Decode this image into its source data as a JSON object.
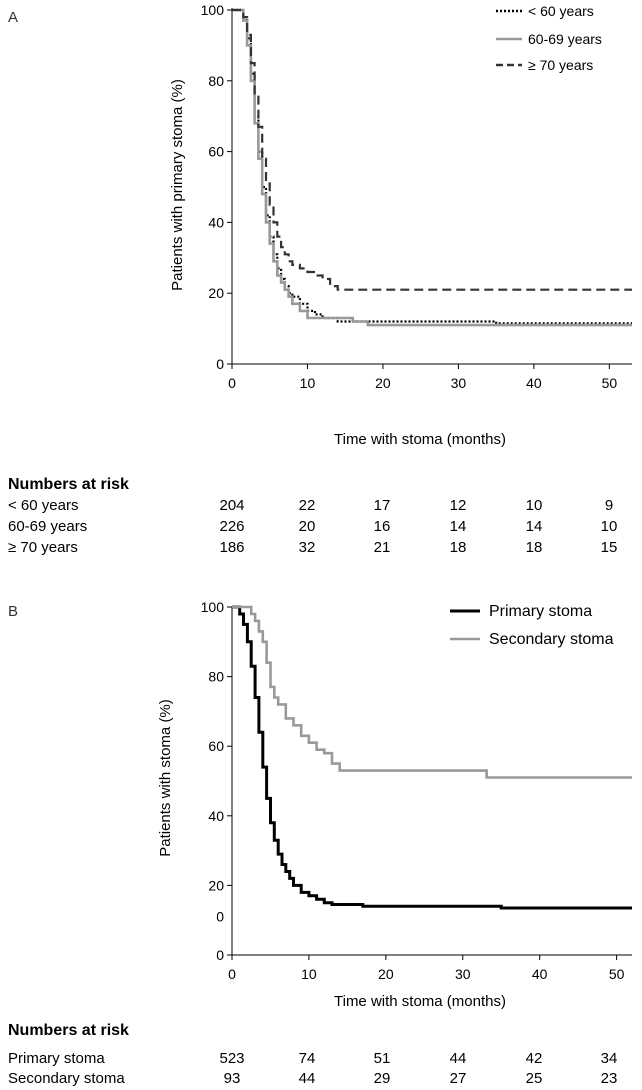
{
  "chart_data": [
    {
      "panel_label": "A",
      "type": "line",
      "title": "",
      "xlabel": "Time with stoma (months)",
      "ylabel": "Patients with primary stoma (%)",
      "xlim": [
        0,
        53
      ],
      "ylim": [
        0,
        100
      ],
      "xticks": [
        0,
        10,
        20,
        30,
        40,
        50
      ],
      "yticks": [
        0,
        20,
        40,
        60,
        80,
        100
      ],
      "legend_position": "top-right",
      "series": [
        {
          "name": "< 60   years",
          "legend_label": "< 60   years",
          "color": "#000000",
          "style": "dotted",
          "x": [
            0,
            1,
            1.5,
            2,
            2.5,
            3,
            3.5,
            4,
            4.5,
            5,
            5.5,
            6,
            6.5,
            7,
            7.5,
            8,
            9,
            10,
            11,
            12,
            14,
            18,
            26,
            35,
            53
          ],
          "y": [
            100,
            100,
            98,
            92,
            82,
            70,
            60,
            50,
            42,
            36,
            31,
            27,
            24,
            22,
            20,
            19,
            17,
            15,
            14,
            13,
            12,
            12,
            12,
            11.5,
            11.5
          ]
        },
        {
          "name": "60-69 years",
          "legend_label": "60-69 years",
          "color": "#999999",
          "style": "solid",
          "x": [
            0,
            1,
            1.5,
            2,
            2.5,
            3,
            3.5,
            4,
            4.5,
            5,
            5.5,
            6,
            6.5,
            7,
            7.5,
            8,
            9,
            10,
            11,
            12,
            14,
            16,
            18,
            53
          ],
          "y": [
            100,
            100,
            97,
            90,
            80,
            68,
            58,
            48,
            40,
            34,
            29,
            25,
            23,
            21,
            19,
            17,
            15,
            13,
            13,
            13,
            13,
            12,
            11,
            11
          ]
        },
        {
          "name": "≥ 70   years",
          "legend_label": "≥ 70   years",
          "color": "#333333",
          "style": "dashed",
          "x": [
            0,
            1,
            1.5,
            2,
            2.5,
            3,
            3.5,
            4,
            4.5,
            5,
            5.5,
            6,
            6.5,
            7,
            7.5,
            8,
            9,
            10,
            11,
            12,
            13,
            14,
            53
          ],
          "y": [
            100,
            100,
            98,
            93,
            85,
            76,
            67,
            58,
            51,
            45,
            40,
            36,
            33,
            31,
            29,
            28,
            27,
            26,
            25,
            24,
            22,
            21,
            21
          ]
        }
      ],
      "risk_table": {
        "title": "Numbers at risk",
        "rows": [
          {
            "label": "< 60   years",
            "values": [
              "204",
              "22",
              "17",
              "12",
              "10",
              "9"
            ]
          },
          {
            "label": "60-69 years",
            "values": [
              "226",
              "20",
              "16",
              "14",
              "14",
              "10"
            ]
          },
          {
            "label": "≥ 70   years",
            "values": [
              "186",
              "32",
              "21",
              "18",
              "18",
              "15"
            ]
          }
        ]
      }
    },
    {
      "panel_label": "B",
      "type": "line",
      "title": "",
      "xlabel": "Time with stoma (months)",
      "ylabel": "Patients with stoma (%)",
      "xlim": [
        0,
        52
      ],
      "ylim": [
        0,
        100
      ],
      "xticks": [
        0,
        10,
        20,
        30,
        40,
        50
      ],
      "ytick_labels": [
        "0",
        "0",
        "20",
        "40",
        "60",
        "80",
        "100"
      ],
      "legend_position": "top-right",
      "series": [
        {
          "name": "Primary stoma",
          "legend_label": "Primary stoma",
          "color": "#000000",
          "style": "solid",
          "x": [
            0,
            1,
            1.5,
            2,
            2.5,
            3,
            3.5,
            4,
            4.5,
            5,
            5.5,
            6,
            6.5,
            7,
            7.5,
            8,
            9,
            10,
            11,
            12,
            13,
            15,
            17,
            26,
            35,
            52
          ],
          "y": [
            100,
            98,
            95,
            90,
            83,
            74,
            64,
            54,
            45,
            38,
            33,
            29,
            26,
            24,
            22,
            20,
            18,
            17,
            16,
            15,
            14.5,
            14.5,
            14,
            14,
            13.5,
            13.5
          ]
        },
        {
          "name": "Secondary stoma",
          "legend_label": "Secondary stoma",
          "color": "#999999",
          "style": "solid",
          "x": [
            0,
            2,
            2.5,
            3,
            3.5,
            4,
            4.5,
            5,
            5.5,
            6,
            7,
            8,
            9,
            10,
            11,
            12,
            13,
            14,
            20,
            26,
            33,
            33.1,
            52
          ],
          "y": [
            100,
            100,
            98,
            96,
            93,
            90,
            84,
            77,
            74,
            72,
            68,
            66,
            63,
            61,
            59,
            58,
            55,
            53,
            53,
            53,
            53,
            51,
            51
          ]
        }
      ],
      "risk_table": {
        "title": "Numbers at risk",
        "rows": [
          {
            "label": "Primary stoma",
            "values": [
              "523",
              "74",
              "51",
              "44",
              "42",
              "34"
            ]
          },
          {
            "label": "Secondary stoma",
            "values": [
              "93",
              "44",
              "29",
              "27",
              "25",
              "23"
            ]
          }
        ]
      }
    }
  ]
}
